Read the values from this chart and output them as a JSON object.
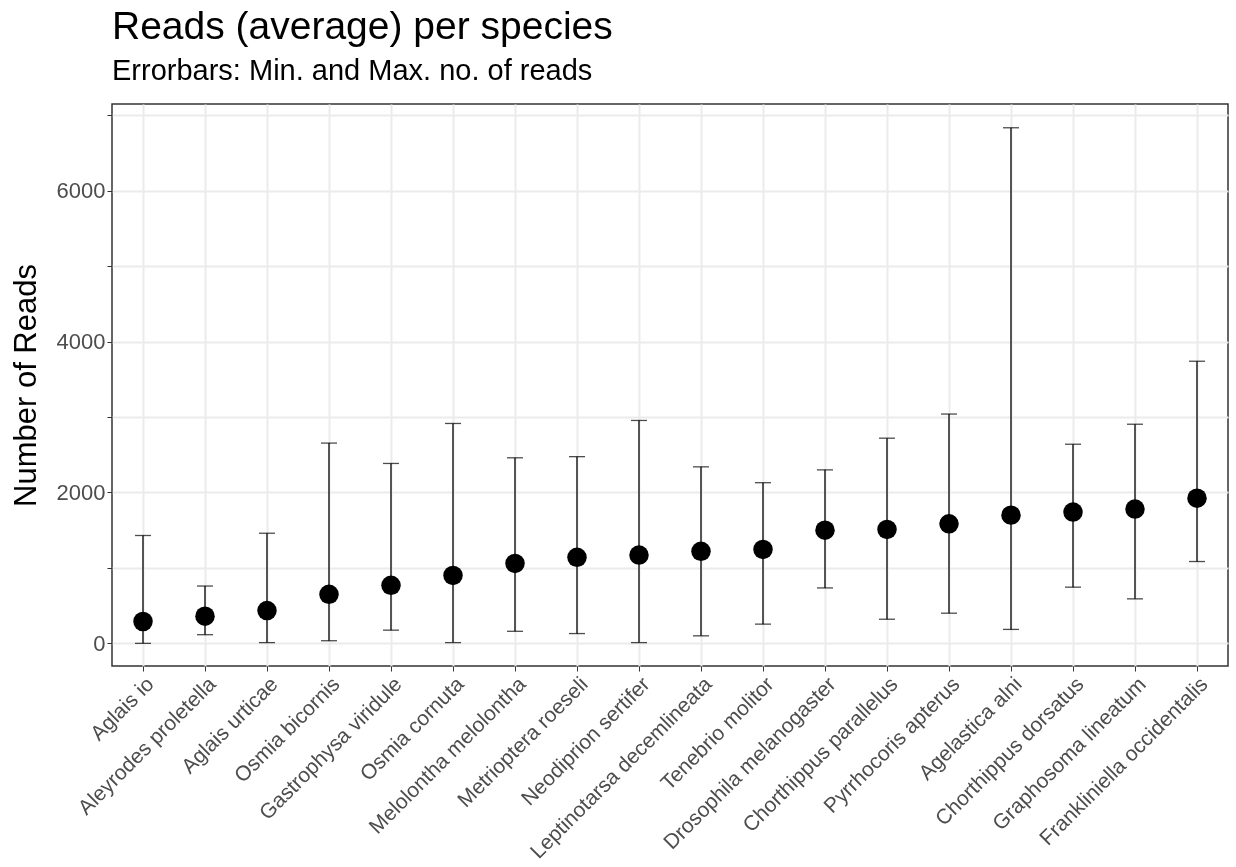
{
  "chart_data": {
    "type": "scatter",
    "title": "Reads (average) per species",
    "subtitle": "Errorbars: Min. and Max. no. of reads",
    "ylabel": "Number of Reads",
    "categories": [
      "Aglais io",
      "Aleyrodes proletella",
      "Aglais urticae",
      "Osmia bicornis",
      "Gastrophysa viridule",
      "Osmia cornuta",
      "Melolontha melolontha",
      "Metrioptera roeseli",
      "Neodiprion sertifer",
      "Leptinotarsa decemlineata",
      "Tenebrio molitor",
      "Drosophila melanogaster",
      "Chorthippus parallelus",
      "Pyrrhocoris apterus",
      "Agelastica alni",
      "Chorthippus dorsatus",
      "Graphosoma lineatum",
      "Frankliniella occidentalis"
    ],
    "values": [
      290,
      360,
      435,
      650,
      770,
      900,
      1060,
      1140,
      1170,
      1220,
      1245,
      1500,
      1510,
      1585,
      1700,
      1740,
      1780,
      1925
    ],
    "errors": [
      [
        0,
        1430
      ],
      [
        115,
        760
      ],
      [
        10,
        1460
      ],
      [
        35,
        2655
      ],
      [
        175,
        2385
      ],
      [
        10,
        2915
      ],
      [
        160,
        2460
      ],
      [
        130,
        2475
      ],
      [
        10,
        2955
      ],
      [
        100,
        2340
      ],
      [
        255,
        2130
      ],
      [
        735,
        2300
      ],
      [
        320,
        2720
      ],
      [
        400,
        3040
      ],
      [
        185,
        6835
      ],
      [
        745,
        2640
      ],
      [
        590,
        2905
      ],
      [
        1085,
        3740
      ]
    ],
    "color": "#000000",
    "marker": "circle",
    "ylim": [
      -300,
      7150
    ],
    "yticks": [
      0,
      {
        "value": 1000,
        "label": null
      },
      2000,
      {
        "value": 3000,
        "label": null
      },
      4000,
      {
        "value": 5000,
        "label": null
      },
      6000,
      {
        "value": 7000,
        "label": null
      }
    ],
    "grid": true
  }
}
